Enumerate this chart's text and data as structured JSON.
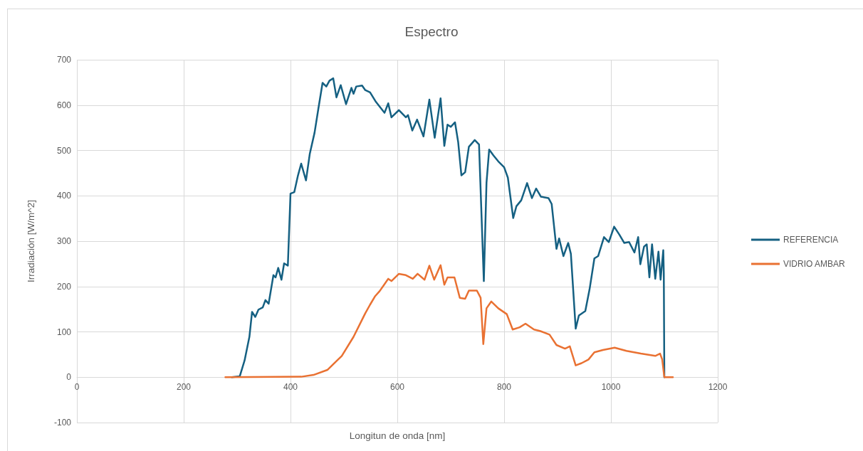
{
  "chart_data": {
    "type": "line",
    "title": "Espectro",
    "xlabel": "Longitun de onda [nm]",
    "ylabel": "Irradiación [W/m^2]",
    "xlim": [
      0,
      1200
    ],
    "xticks": [
      0,
      200,
      400,
      600,
      800,
      1000,
      1200
    ],
    "ylim": [
      -100,
      700
    ],
    "yticks": [
      -100,
      0,
      100,
      200,
      300,
      400,
      500,
      600,
      700
    ],
    "grid": true,
    "legend": "right",
    "marker": "none",
    "series": [
      {
        "name": "REFERENCIA",
        "color": "#156082",
        "x": [
          290,
          305,
          314,
          323,
          328,
          334,
          340,
          348,
          353,
          359,
          368,
          372,
          377,
          383,
          388,
          395,
          400,
          407,
          414,
          420,
          429,
          436,
          445,
          452,
          460,
          467,
          473,
          480,
          486,
          494,
          504,
          514,
          518,
          523,
          534,
          540,
          549,
          560,
          576,
          583,
          589,
          603,
          616,
          620,
          628,
          637,
          649,
          660,
          670,
          681,
          688,
          694,
          700,
          708,
          714,
          720,
          727,
          734,
          745,
          753,
          762,
          767,
          772,
          780,
          789,
          800,
          807,
          817,
          823,
          832,
          843,
          852,
          860,
          869,
          883,
          889,
          898,
          903,
          911,
          920,
          925,
          934,
          940,
          952,
          960,
          969,
          976,
          987,
          996,
          1006,
          1016,
          1025,
          1034,
          1044,
          1051,
          1055,
          1062,
          1067,
          1072,
          1077,
          1083,
          1089,
          1093,
          1098,
          1099,
          1100
        ],
        "values": [
          0,
          2,
          37,
          89,
          144,
          133,
          149,
          154,
          170,
          162,
          225,
          220,
          241,
          215,
          251,
          246,
          405,
          408,
          445,
          471,
          434,
          492,
          539,
          591,
          649,
          641,
          654,
          659,
          617,
          644,
          602,
          638,
          625,
          641,
          643,
          633,
          628,
          607,
          583,
          604,
          573,
          589,
          573,
          578,
          544,
          568,
          531,
          612,
          528,
          615,
          510,
          557,
          552,
          562,
          518,
          445,
          452,
          508,
          523,
          513,
          212,
          429,
          502,
          489,
          476,
          463,
          440,
          351,
          377,
          390,
          428,
          395,
          416,
          398,
          395,
          382,
          283,
          306,
          267,
          296,
          272,
          107,
          136,
          146,
          194,
          262,
          267,
          309,
          298,
          332,
          314,
          296,
          298,
          275,
          309,
          249,
          288,
          293,
          220,
          293,
          217,
          277,
          215,
          280,
          230,
          0
        ]
      },
      {
        "name": "VIDRIO AMBAR",
        "color": "#e97132",
        "x": [
          278,
          420,
          443,
          469,
          496,
          518,
          540,
          549,
          558,
          567,
          576,
          583,
          589,
          603,
          616,
          629,
          638,
          651,
          660,
          669,
          681,
          688,
          694,
          707,
          717,
          727,
          734,
          749,
          756,
          761,
          767,
          776,
          789,
          805,
          816,
          829,
          840,
          856,
          867,
          885,
          898,
          914,
          923,
          934,
          945,
          958,
          969,
          985,
          1007,
          1029,
          1056,
          1083,
          1092,
          1096,
          1100,
          1116
        ],
        "values": [
          0,
          1,
          5,
          16,
          47,
          89,
          141,
          160,
          178,
          190,
          205,
          217,
          212,
          228,
          225,
          217,
          228,
          215,
          246,
          215,
          247,
          204,
          220,
          220,
          175,
          173,
          191,
          191,
          175,
          73,
          152,
          167,
          152,
          139,
          105,
          110,
          118,
          105,
          102,
          94,
          71,
          63,
          68,
          26,
          31,
          39,
          55,
          60,
          65,
          58,
          52,
          47,
          52,
          39,
          0,
          0
        ]
      }
    ]
  }
}
